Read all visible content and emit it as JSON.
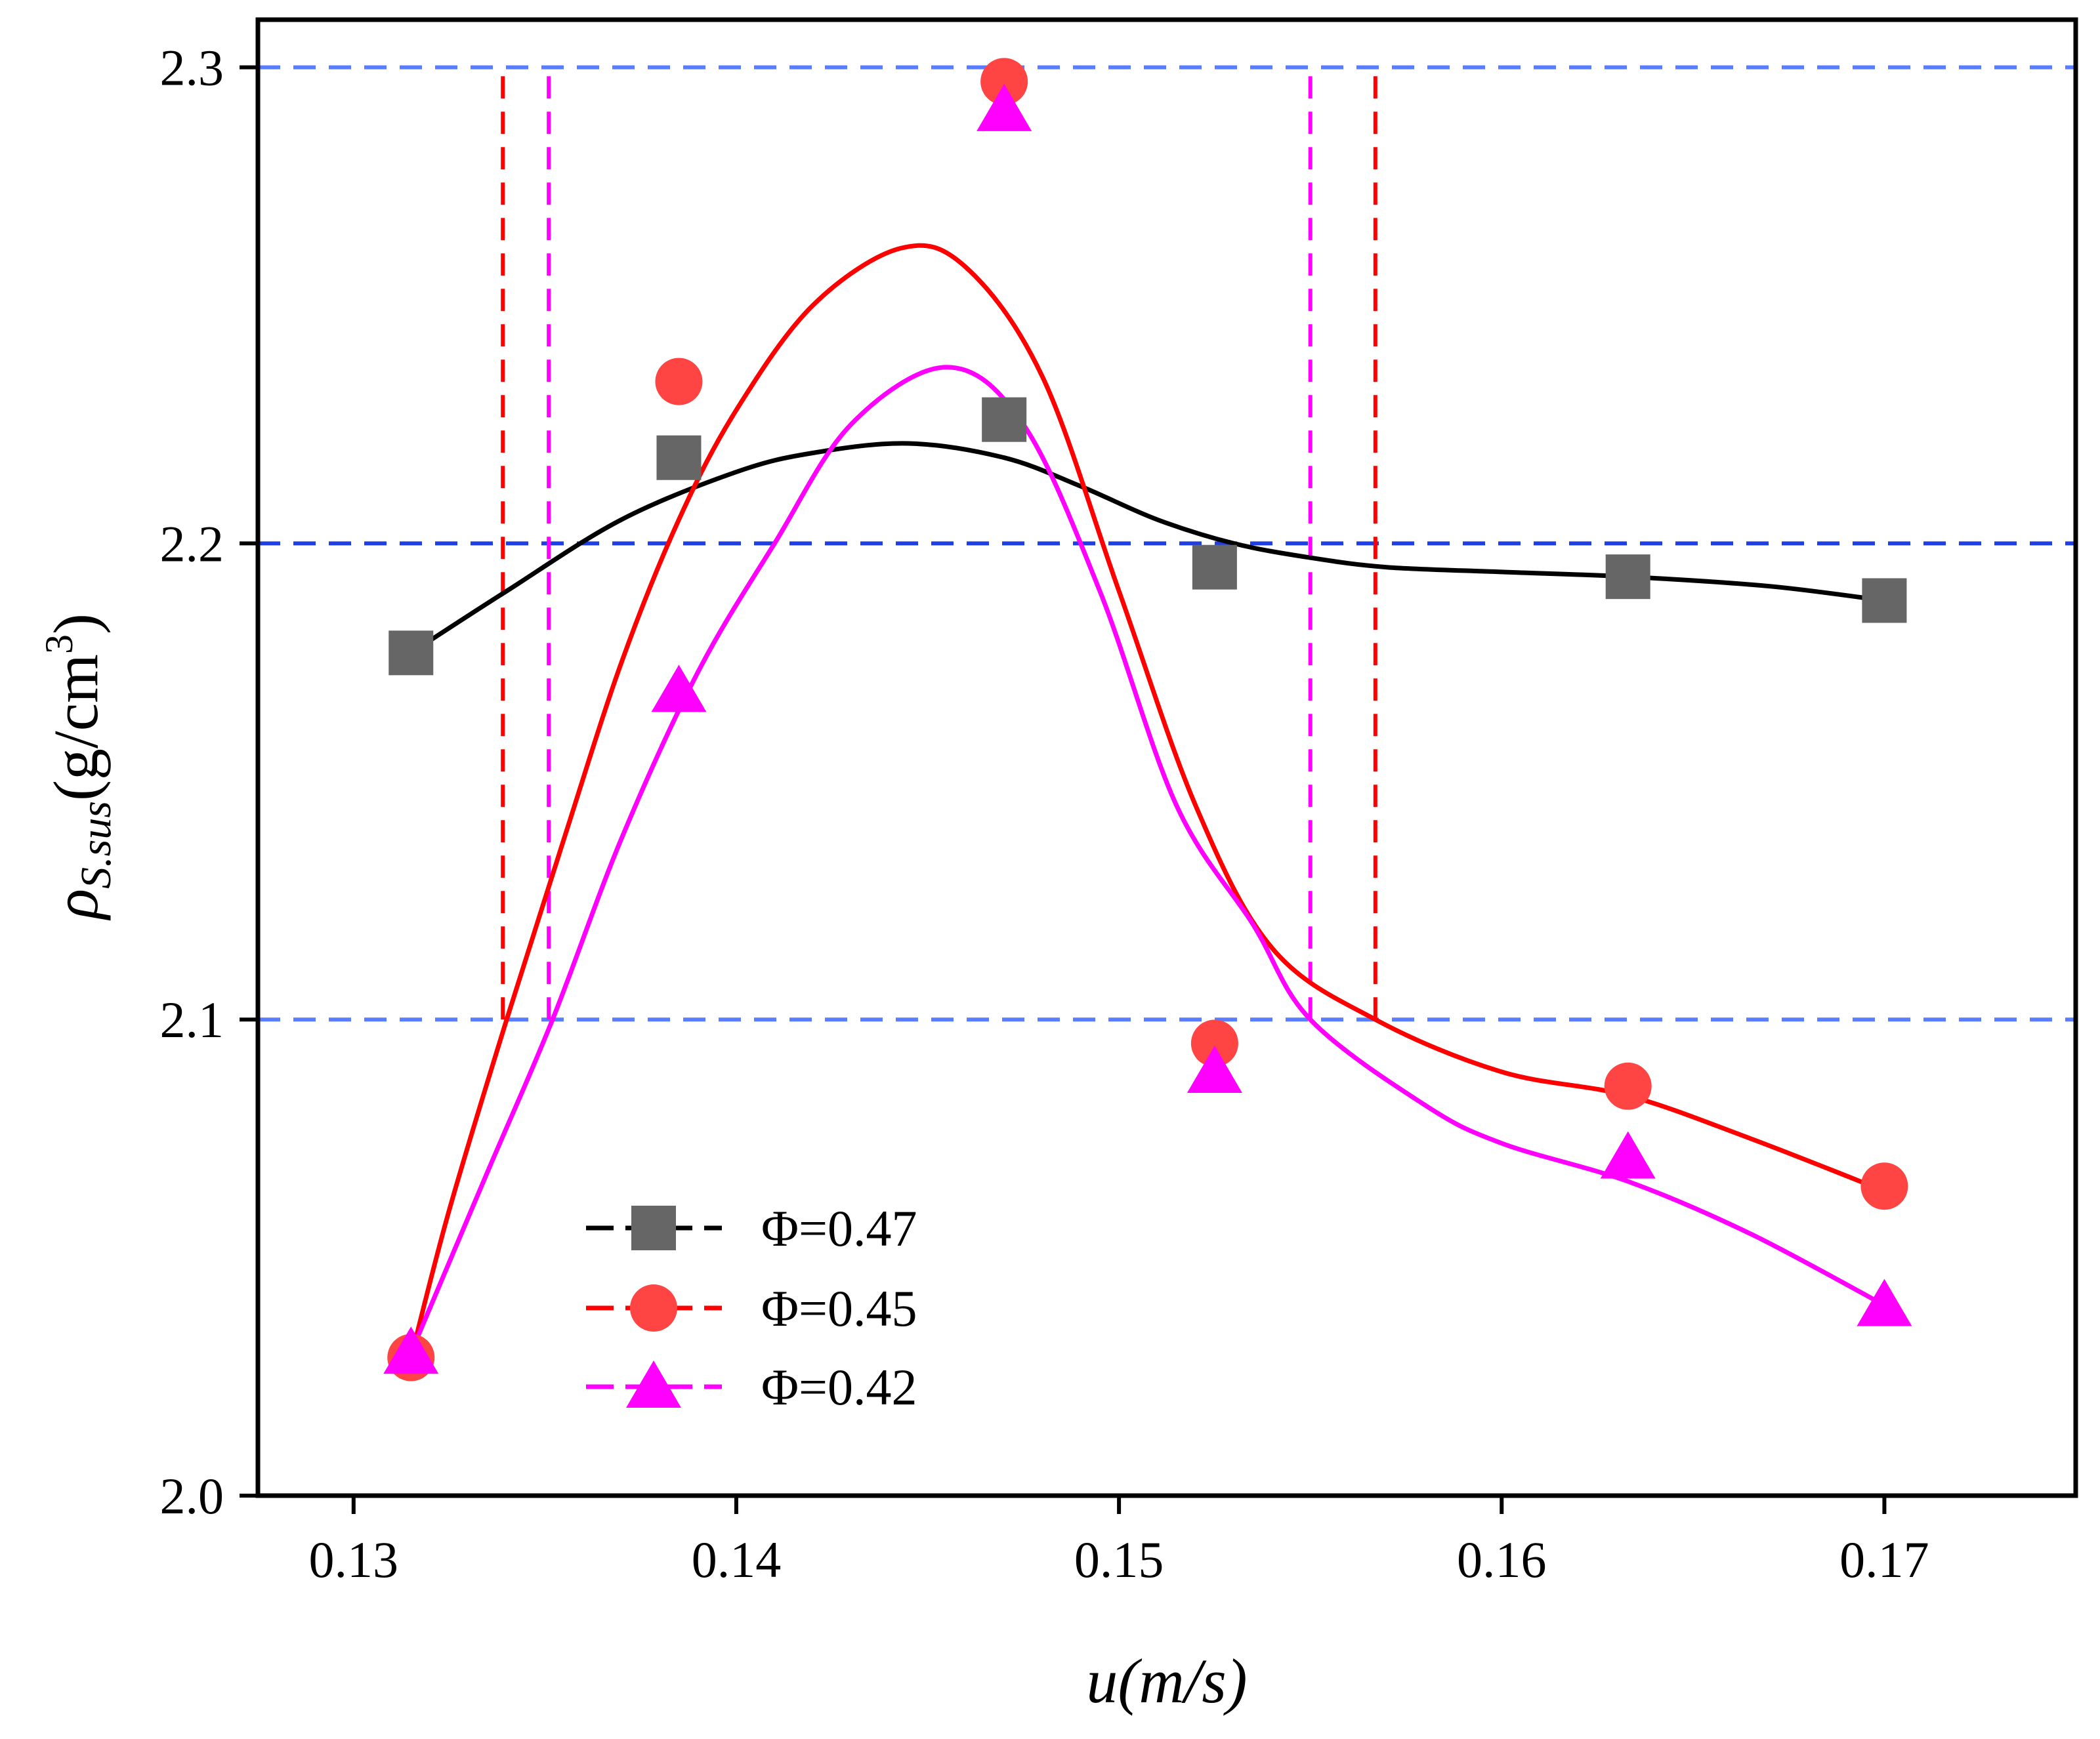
{
  "chart_data": {
    "type": "scatter",
    "title": "",
    "xlabel": "u(m/s)",
    "ylabel": {
      "rho": "ρ",
      "subscript": "S.sus",
      "unit_open": "(g/cm",
      "unit_sup": "3",
      "unit_close": ")"
    },
    "xlim": [
      0.1275,
      0.175
    ],
    "ylim": [
      2.0,
      2.31
    ],
    "x_ticks": [
      {
        "value": 0.13,
        "label": "0.13"
      },
      {
        "value": 0.14,
        "label": "0.14"
      },
      {
        "value": 0.15,
        "label": "0.15"
      },
      {
        "value": 0.16,
        "label": "0.16"
      },
      {
        "value": 0.17,
        "label": "0.17"
      }
    ],
    "y_ticks": [
      {
        "value": 2.0,
        "label": "2.0"
      },
      {
        "value": 2.1,
        "label": "2.1"
      },
      {
        "value": 2.2,
        "label": "2.2"
      },
      {
        "value": 2.3,
        "label": "2.3"
      }
    ],
    "legend_position": "bottom-left",
    "series": [
      {
        "name": "Φ=0.47",
        "color": "#000000",
        "marker_color": "#666666",
        "marker": "square",
        "x": [
          0.1315,
          0.1385,
          0.147,
          0.1525,
          0.1633,
          0.17
        ],
        "y": [
          2.177,
          2.218,
          2.226,
          2.195,
          2.193,
          2.188
        ],
        "fit": [
          [
            0.1315,
            2.177
          ],
          [
            0.134,
            2.19
          ],
          [
            0.137,
            2.205
          ],
          [
            0.14,
            2.215
          ],
          [
            0.142,
            2.219
          ],
          [
            0.1445,
            2.221
          ],
          [
            0.147,
            2.218
          ],
          [
            0.149,
            2.212
          ],
          [
            0.151,
            2.205
          ],
          [
            0.153,
            2.2
          ],
          [
            0.155,
            2.197
          ],
          [
            0.157,
            2.195
          ],
          [
            0.16,
            2.194
          ],
          [
            0.1633,
            2.193
          ],
          [
            0.167,
            2.191
          ],
          [
            0.17,
            2.188
          ]
        ]
      },
      {
        "name": "Φ=0.45",
        "color": "#ff0000",
        "marker_color": "#ff4444",
        "marker": "circle",
        "x": [
          0.1315,
          0.1385,
          0.147,
          0.1525,
          0.1633,
          0.17
        ],
        "y": [
          2.029,
          2.234,
          2.297,
          2.095,
          2.086,
          2.065
        ],
        "fit": [
          [
            0.1315,
            2.029
          ],
          [
            0.1325,
            2.06
          ],
          [
            0.134,
            2.1
          ],
          [
            0.1355,
            2.138
          ],
          [
            0.137,
            2.175
          ],
          [
            0.1385,
            2.205
          ],
          [
            0.14,
            2.228
          ],
          [
            0.142,
            2.25
          ],
          [
            0.1443,
            2.262
          ],
          [
            0.146,
            2.258
          ],
          [
            0.148,
            2.235
          ],
          [
            0.15,
            2.19
          ],
          [
            0.152,
            2.145
          ],
          [
            0.154,
            2.115
          ],
          [
            0.1567,
            2.1
          ],
          [
            0.16,
            2.089
          ],
          [
            0.1633,
            2.084
          ],
          [
            0.1665,
            2.075
          ],
          [
            0.17,
            2.064
          ]
        ]
      },
      {
        "name": "Φ=0.42",
        "color": "#ff00ff",
        "marker_color": "#ff00ff",
        "marker": "triangle",
        "x": [
          0.1315,
          0.1385,
          0.147,
          0.1525,
          0.1633,
          0.17
        ],
        "y": [
          2.03,
          2.169,
          2.291,
          2.089,
          2.071,
          2.04
        ],
        "fit": [
          [
            0.1315,
            2.03
          ],
          [
            0.1335,
            2.068
          ],
          [
            0.1352,
            2.1
          ],
          [
            0.137,
            2.138
          ],
          [
            0.139,
            2.173
          ],
          [
            0.141,
            2.2
          ],
          [
            0.143,
            2.225
          ],
          [
            0.1455,
            2.237
          ],
          [
            0.1475,
            2.225
          ],
          [
            0.1495,
            2.19
          ],
          [
            0.1515,
            2.145
          ],
          [
            0.1535,
            2.12
          ],
          [
            0.155,
            2.1
          ],
          [
            0.158,
            2.082
          ],
          [
            0.16,
            2.074
          ],
          [
            0.1633,
            2.066
          ],
          [
            0.1665,
            2.055
          ],
          [
            0.17,
            2.04
          ]
        ]
      }
    ],
    "reference_lines": {
      "horizontal": [
        {
          "y": 2.1,
          "color": "#5a7cff"
        },
        {
          "y": 2.2,
          "color": "#1f3fe0"
        },
        {
          "y": 2.3,
          "color": "#5a7cff"
        }
      ],
      "vertical": [
        {
          "x": 0.1339,
          "y_from": 2.1,
          "y_to": 2.3,
          "color": "#ff0000"
        },
        {
          "x": 0.1351,
          "y_from": 2.1,
          "y_to": 2.3,
          "color": "#ff00ff"
        },
        {
          "x": 0.155,
          "y_from": 2.1,
          "y_to": 2.3,
          "color": "#ff00ff"
        },
        {
          "x": 0.1567,
          "y_from": 2.1,
          "y_to": 2.3,
          "color": "#ff0000"
        }
      ]
    }
  }
}
